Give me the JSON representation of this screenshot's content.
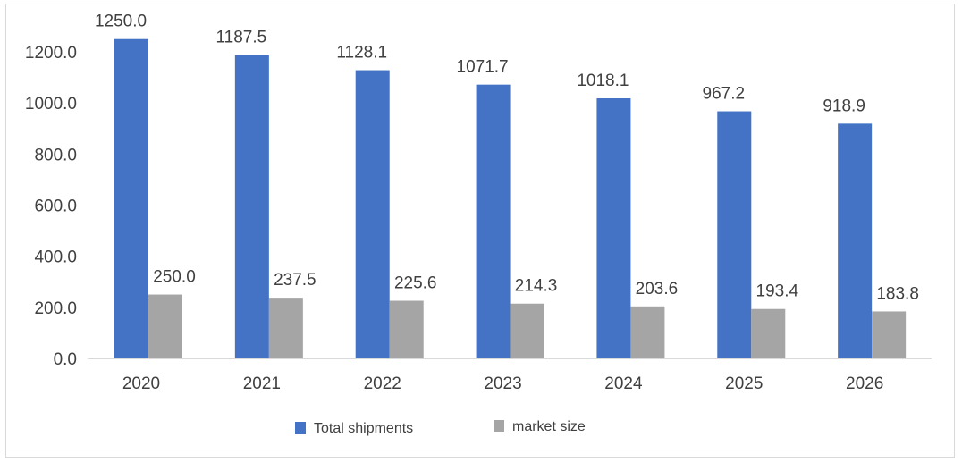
{
  "chart_data": {
    "type": "bar",
    "categories": [
      "2020",
      "2021",
      "2022",
      "2023",
      "2024",
      "2025",
      "2026"
    ],
    "series": [
      {
        "name": "Total shipments",
        "values": [
          1250.0,
          1187.5,
          1128.1,
          1071.7,
          1018.1,
          967.2,
          918.9
        ],
        "color": "#4472c4"
      },
      {
        "name": "market size",
        "values": [
          250.0,
          237.5,
          225.6,
          214.3,
          203.6,
          193.4,
          183.8
        ],
        "color": "#a5a5a5"
      }
    ],
    "ylim": [
      0,
      1200
    ],
    "yticks": [
      "0.0",
      "200.0",
      "400.0",
      "600.0",
      "800.0",
      "1000.0",
      "1200.0"
    ],
    "value_format": "one-decimal",
    "grid": false,
    "legend": "bottom-center",
    "title": "",
    "xlabel": "",
    "ylabel": ""
  }
}
